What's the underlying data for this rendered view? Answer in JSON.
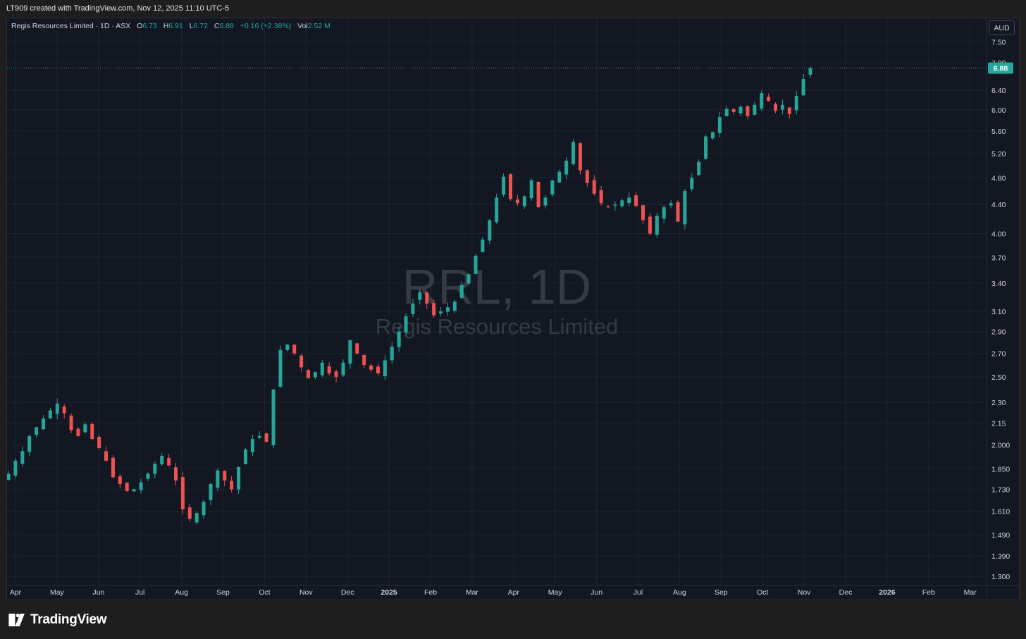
{
  "header": {
    "credit": "LT909 created with TradingView.com, Nov 12, 2025 11:10 UTC-5"
  },
  "legend": {
    "symbol": "Regis Resources Limited · 1D · ASX",
    "o_label": "O",
    "o_value": "6.73",
    "h_label": "H",
    "h_value": "6.91",
    "l_label": "L",
    "l_value": "6.72",
    "c_label": "C",
    "c_value": "6.88",
    "change": "+0.16 (+2.38%)",
    "vol_label": "Vol",
    "vol_value": "2.52 M"
  },
  "currency": "AUD",
  "watermark": {
    "ticker": "RRL, 1D",
    "name": "Regis Resources Limited"
  },
  "footer": {
    "brand": "TradingView"
  },
  "colors": {
    "background": "#131722",
    "up": "#26a69a",
    "down": "#ef5350",
    "grid": "#1f2330",
    "axis_text": "#d1d4dc",
    "watermark": "#363a45"
  },
  "chart_data": {
    "type": "candlestick",
    "scale": "log",
    "y_ticks": [
      7.5,
      7.0,
      6.4,
      6.0,
      5.6,
      5.2,
      4.8,
      4.4,
      4.0,
      3.7,
      3.4,
      3.1,
      2.9,
      2.7,
      2.5,
      2.3,
      2.15,
      2.0,
      1.85,
      1.73,
      1.61,
      1.49,
      1.39,
      1.3
    ],
    "y_tick_labels": [
      "7.50",
      "7.00",
      "6.40",
      "6.00",
      "5.60",
      "5.20",
      "4.80",
      "4.40",
      "4.00",
      "3.70",
      "3.40",
      "3.10",
      "2.90",
      "2.70",
      "2.50",
      "2.30",
      "2.15",
      "2.000",
      "1.850",
      "1.730",
      "1.610",
      "1.490",
      "1.390",
      "1.300"
    ],
    "x_labels": [
      "Apr",
      "May",
      "Jun",
      "Jul",
      "Aug",
      "Sep",
      "Oct",
      "Nov",
      "Dec",
      "2025",
      "Feb",
      "Mar",
      "Apr",
      "May",
      "Jun",
      "Jul",
      "Aug",
      "Sep",
      "Oct",
      "Nov",
      "Dec",
      "2026",
      "Feb",
      "Mar"
    ],
    "x_label_bold": [
      false,
      false,
      false,
      false,
      false,
      false,
      false,
      false,
      false,
      true,
      false,
      false,
      false,
      false,
      false,
      false,
      false,
      false,
      false,
      false,
      false,
      true,
      false,
      false
    ],
    "last_price": 6.88,
    "closes": [
      1.82,
      1.9,
      1.96,
      2.06,
      2.12,
      2.18,
      2.24,
      2.29,
      2.22,
      2.1,
      2.06,
      2.14,
      2.04,
      1.98,
      1.9,
      1.8,
      1.76,
      1.72,
      1.73,
      1.77,
      1.82,
      1.88,
      1.93,
      1.87,
      1.78,
      1.62,
      1.57,
      1.6,
      1.66,
      1.76,
      1.84,
      1.78,
      1.73,
      1.86,
      1.97,
      2.04,
      2.06,
      2.02,
      2.4,
      2.73,
      2.78,
      2.7,
      2.58,
      2.49,
      2.54,
      2.62,
      2.53,
      2.5,
      2.62,
      2.82,
      2.7,
      2.6,
      2.56,
      2.53,
      2.64,
      2.76,
      2.9,
      3.05,
      3.18,
      3.3,
      3.18,
      3.06,
      3.1,
      3.14,
      3.2,
      3.38,
      3.5,
      3.72,
      3.92,
      4.18,
      4.5,
      4.82,
      4.48,
      4.42,
      4.52,
      4.76,
      4.36,
      4.5,
      4.76,
      4.9,
      5.08,
      5.4,
      4.92,
      4.72,
      4.56,
      4.42,
      4.36,
      4.4,
      4.46,
      4.5,
      4.38,
      4.18,
      4.0,
      4.24,
      4.36,
      4.42,
      4.16,
      4.6,
      4.8,
      5.06,
      5.5,
      5.58,
      5.86,
      6.02,
      5.96,
      6.06,
      5.88,
      6.1,
      6.34,
      6.18,
      5.98,
      6.1,
      5.92,
      6.28,
      6.64,
      6.88
    ]
  }
}
